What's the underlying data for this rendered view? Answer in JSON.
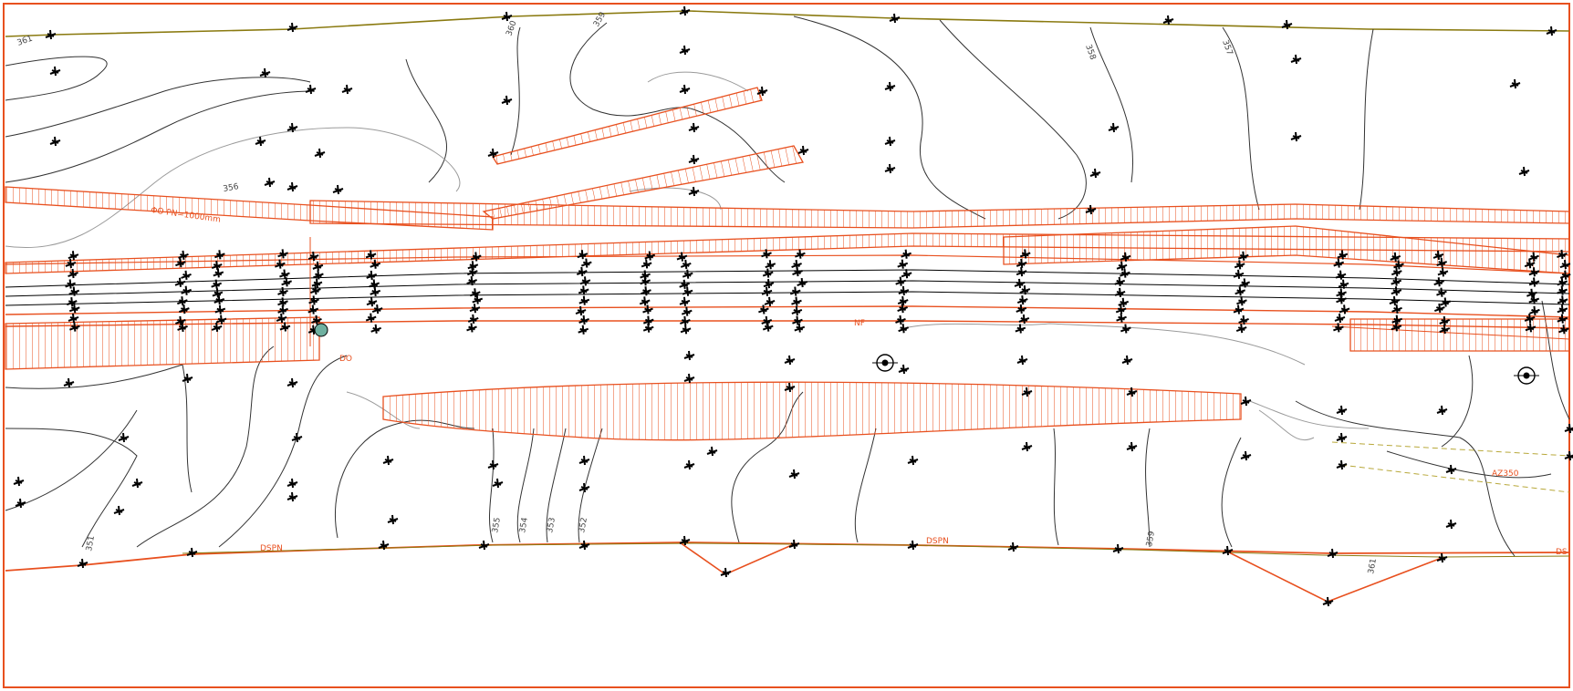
{
  "drawing": {
    "colors": {
      "boundary": "#e8501f",
      "contour": "#333333",
      "contour_light": "#9a9a9a",
      "point": "#000000",
      "hatch": "#e8501f",
      "edge_olive": "#8a7a10",
      "background": "#ffffff"
    },
    "text_labels": {
      "pipe_note": "ΦΟ PN=1000mm",
      "code_bottom_left": "DSPN",
      "code_bottom_mid": "DSPN",
      "code_right": "AZ350",
      "code_far_right": "DS",
      "code_left_small": "DO",
      "code_mid_small": "NF"
    },
    "contour_labels": [
      "361",
      "360",
      "359",
      "358",
      "357",
      "356",
      "355",
      "354",
      "353",
      "352",
      "351"
    ],
    "icons": [
      "survey-station-icon",
      "survey-station-icon-2",
      "tree-marker-icon"
    ]
  }
}
